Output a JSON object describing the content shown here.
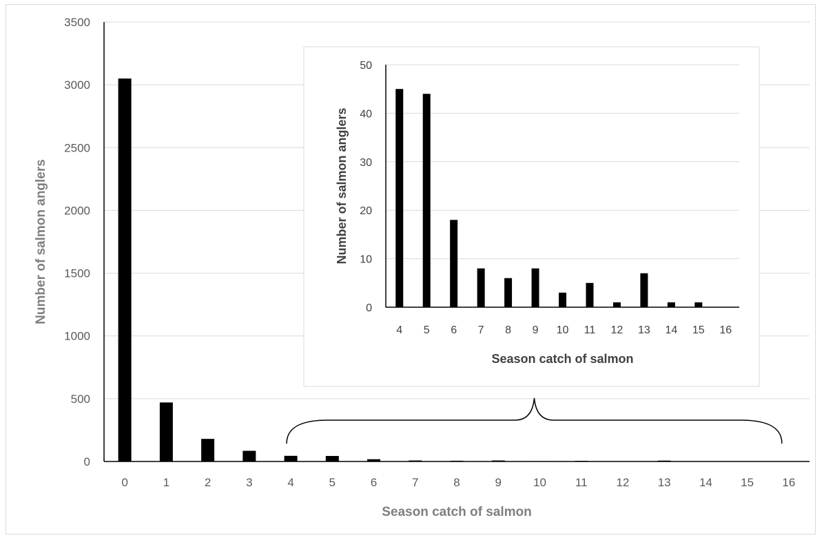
{
  "chart_data": [
    {
      "type": "bar",
      "xlabel": "Season catch of salmon",
      "ylabel": "Number of salmon anglers",
      "categories": [
        "0",
        "1",
        "2",
        "3",
        "4",
        "5",
        "6",
        "7",
        "8",
        "9",
        "10",
        "11",
        "12",
        "13",
        "14",
        "15",
        "16"
      ],
      "values": [
        3050,
        470,
        180,
        85,
        45,
        44,
        18,
        8,
        6,
        8,
        3,
        5,
        1,
        7,
        1,
        1,
        0
      ],
      "ylim": [
        0,
        3500
      ],
      "yticks": [
        0,
        500,
        1000,
        1500,
        2000,
        2500,
        3000,
        3500
      ],
      "grid": true,
      "bar_color": "#000000",
      "annotation": "brace spanning catches 4–16, pointing to inset chart"
    },
    {
      "type": "bar",
      "xlabel": "Season catch of salmon",
      "ylabel": "Number of salmon anglers",
      "categories": [
        "4",
        "5",
        "6",
        "7",
        "8",
        "9",
        "10",
        "11",
        "12",
        "13",
        "14",
        "15",
        "16"
      ],
      "values": [
        45,
        44,
        18,
        8,
        6,
        8,
        3,
        5,
        1,
        7,
        1,
        1,
        0
      ],
      "ylim": [
        0,
        50
      ],
      "yticks": [
        0,
        10,
        20,
        30,
        40,
        50
      ],
      "grid": true,
      "bar_color": "#000000"
    }
  ]
}
